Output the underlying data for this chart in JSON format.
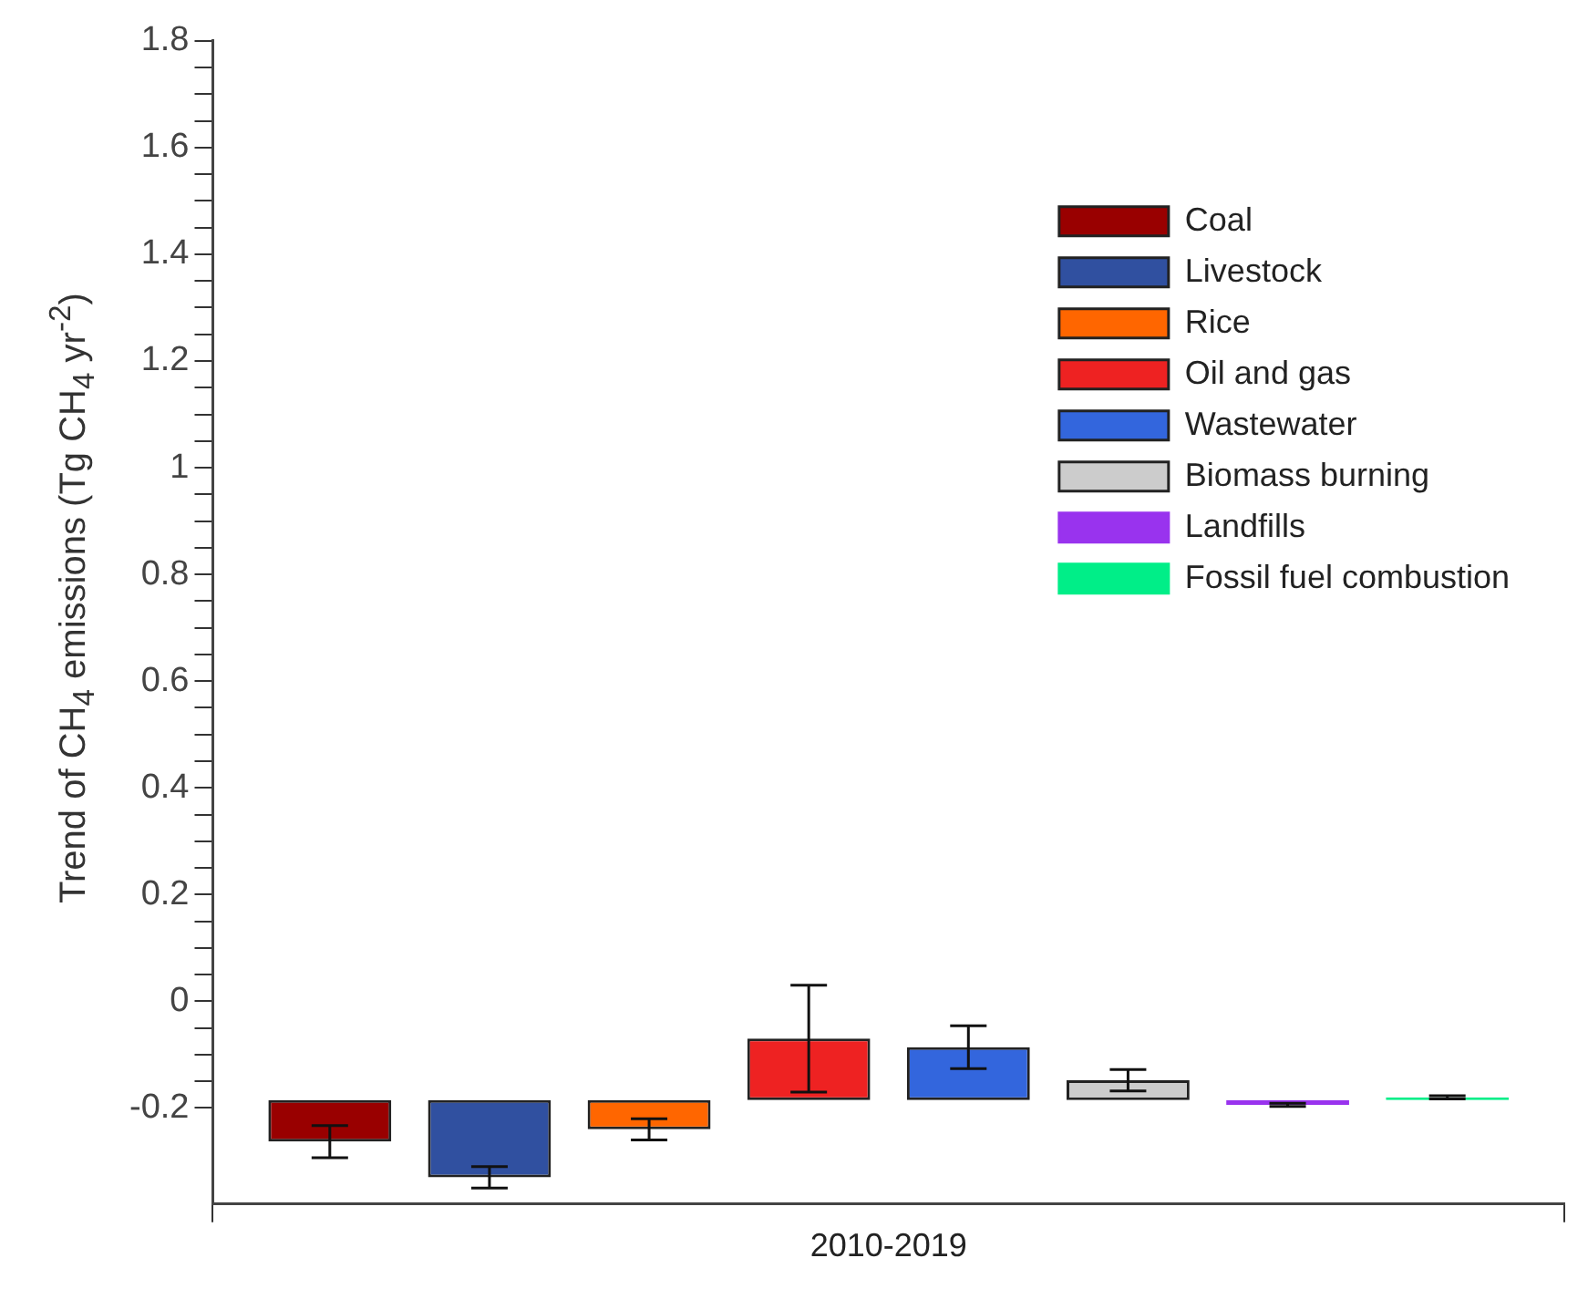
{
  "chart_data": {
    "type": "bar",
    "ylabel": "Trend of CH$_{4}$ emissions (Tg CH$_{4}$ yr$^{-2}$)",
    "categories": [
      "2010-2019"
    ],
    "series": [
      {
        "name": "Coal",
        "color": "#990000",
        "values": [
          -0.078
        ],
        "base": [
          -0.185
        ],
        "errors": [
          0.03
        ]
      },
      {
        "name": "Livestock",
        "color": "#3050a0",
        "values": [
          -0.145
        ],
        "base": [
          -0.185
        ],
        "errors": [
          0.02
        ]
      },
      {
        "name": "Rice",
        "color": "#ff6600",
        "values": [
          -0.055
        ],
        "base": [
          -0.185
        ],
        "errors": [
          0.02
        ]
      },
      {
        "name": "Oil and gas",
        "color": "#ee2222",
        "values": [
          0.115
        ],
        "base": [
          -0.185
        ],
        "errors": [
          0.1
        ]
      },
      {
        "name": "Wastewater",
        "color": "#3366dd",
        "values": [
          0.099
        ],
        "base": [
          -0.185
        ],
        "errors": [
          0.04
        ]
      },
      {
        "name": "Biomass burning",
        "color": "#cccccc",
        "values": [
          0.037
        ],
        "base": [
          -0.185
        ],
        "errors": [
          0.02
        ]
      },
      {
        "name": "Landfills",
        "color": "#9933ee",
        "values": [
          -0.009
        ],
        "base": [
          -0.185
        ],
        "errors": [
          0.003
        ]
      },
      {
        "name": "Fossil fuel combustion",
        "color": "#00ee88",
        "values": [
          0.005
        ],
        "base": [
          -0.185
        ],
        "errors": [
          0.003
        ]
      }
    ],
    "ylim": [
      -0.38,
      1.8
    ],
    "yticks": [
      -0.2,
      {
        "value": -0.15,
        "label": null
      },
      {
        "value": -0.1,
        "label": null
      },
      {
        "value": -0.05,
        "label": null
      },
      0,
      {
        "value": 0.05,
        "label": null
      },
      {
        "value": 0.1,
        "label": null
      },
      {
        "value": 0.15,
        "label": null
      },
      0.2,
      {
        "value": 0.25,
        "label": null
      },
      {
        "value": 0.3,
        "label": null
      },
      {
        "value": 0.35,
        "label": null
      },
      0.4,
      {
        "value": 0.45,
        "label": null
      },
      {
        "value": 0.5,
        "label": null
      },
      {
        "value": 0.55,
        "label": null
      },
      0.6,
      {
        "value": 0.65,
        "label": null
      },
      {
        "value": 0.7,
        "label": null
      },
      {
        "value": 0.75,
        "label": null
      },
      0.8,
      {
        "value": 0.85,
        "label": null
      },
      {
        "value": 0.9,
        "label": null
      },
      {
        "value": 0.95,
        "label": null
      },
      1,
      {
        "value": 1.05,
        "label": null
      },
      {
        "value": 1.1,
        "label": null
      },
      {
        "value": 1.15,
        "label": null
      },
      1.2,
      {
        "value": 1.25,
        "label": null
      },
      {
        "value": 1.3,
        "label": null
      },
      {
        "value": 1.35,
        "label": null
      },
      1.4,
      {
        "value": 1.45,
        "label": null
      },
      {
        "value": 1.5,
        "label": null
      },
      {
        "value": 1.55,
        "label": null
      },
      1.6,
      {
        "value": 1.65,
        "label": null
      },
      {
        "value": 1.7,
        "label": null
      },
      {
        "value": 1.75,
        "label": null
      },
      1.8
    ],
    "grid": false,
    "legend": "top right"
  }
}
